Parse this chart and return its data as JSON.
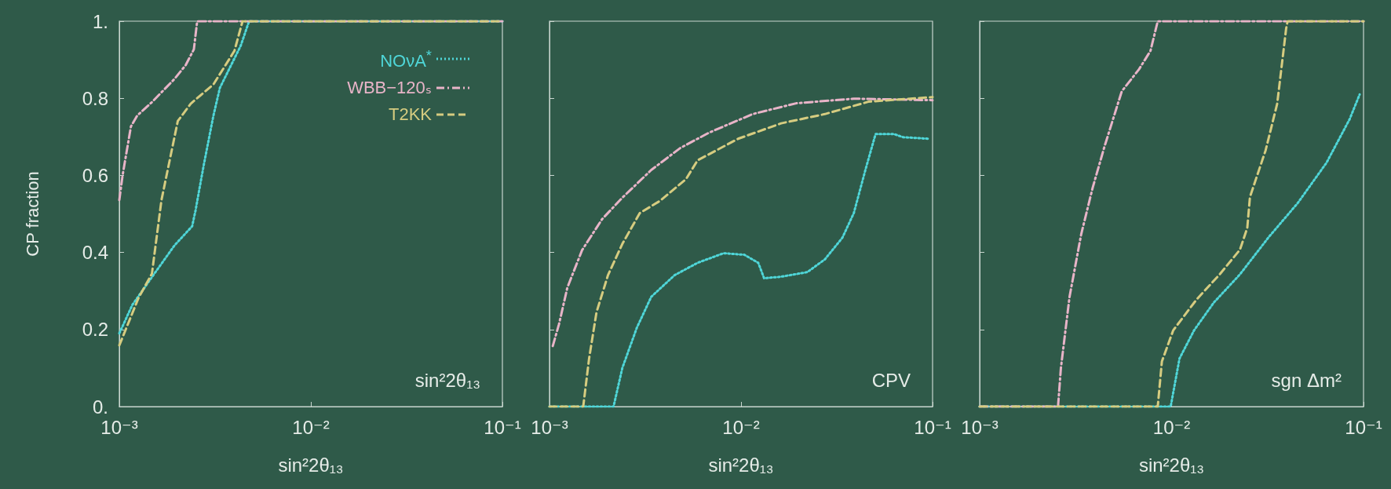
{
  "chart_data": [
    {
      "type": "line",
      "xlabel": "sin²2θ₁₃",
      "ylabel": "CP fraction",
      "log": "x",
      "xlim": [
        0.001,
        0.1
      ],
      "xticks": [
        {
          "value": 0.001,
          "label": "10⁻³"
        },
        {
          "value": 0.01,
          "label": "10⁻²"
        },
        {
          "value": 0.1,
          "label": "10⁻¹"
        }
      ],
      "ylim": [
        0,
        1
      ],
      "yticks": [
        {
          "value": 0,
          "label": "0."
        },
        0.2,
        0.4,
        0.6,
        0.8,
        {
          "value": 1,
          "label": "1."
        }
      ],
      "legend": "top right",
      "annotations": [
        "sin²2θ₁₃"
      ],
      "series": [
        {
          "name": "NOνA$^{*}$",
          "color": "#4fd6d8",
          "line_style": "dotted",
          "x": [
            0.001,
            0.00117,
            0.00148,
            0.00194,
            0.0024,
            0.0025,
            0.00276,
            0.0031,
            0.00335,
            0.0043,
            0.00476,
            0.1
          ],
          "values": [
            0.19,
            0.264,
            0.336,
            0.418,
            0.468,
            0.509,
            0.627,
            0.755,
            0.827,
            0.936,
            1,
            1
          ]
        },
        {
          "name": "WBB−120ₛ",
          "color": "#e8b4c8",
          "line_style": "dashdot",
          "x": [
            0.001,
            0.00104,
            0.00115,
            0.00124,
            0.00148,
            0.00194,
            0.00222,
            0.00245,
            0.00255,
            0.1
          ],
          "values": [
            0.536,
            0.6,
            0.727,
            0.755,
            0.79,
            0.85,
            0.886,
            0.927,
            1,
            1
          ]
        },
        {
          "name": "T2KK",
          "color": "#d6cc80",
          "line_style": "dashed",
          "x": [
            0.001,
            0.00126,
            0.00148,
            0.00166,
            0.00202,
            0.00236,
            0.0031,
            0.00399,
            0.0044,
            0.1
          ],
          "values": [
            0.159,
            0.282,
            0.345,
            0.536,
            0.741,
            0.786,
            0.836,
            0.923,
            1,
            1
          ]
        }
      ]
    },
    {
      "type": "line",
      "xlabel": "sin²2θ₁₃",
      "log": "x",
      "xlim": [
        0.001,
        0.1
      ],
      "xticks": [
        {
          "value": 0.001,
          "label": "10⁻³"
        },
        {
          "value": 0.01,
          "label": "10⁻²"
        },
        {
          "value": 0.1,
          "label": "10⁻¹"
        }
      ],
      "ylim": [
        0,
        1
      ],
      "yticks": [
        0,
        0.2,
        0.4,
        0.6,
        0.8,
        1
      ],
      "tick_labels": "x",
      "annotations": [
        "CPV"
      ],
      "series": [
        {
          "color": "#4fd6d8",
          "line_style": "dotted",
          "x": [
            0.001,
            0.00216,
            0.0024,
            0.00286,
            0.0034,
            0.0045,
            0.00593,
            0.00811,
            0.0104,
            0.0123,
            0.0132,
            0.0162,
            0.0222,
            0.0274,
            0.0338,
            0.0388,
            0.0446,
            0.0504,
            0.0631,
            0.0701,
            0.0955
          ],
          "values": [
            0,
            0,
            0.1,
            0.205,
            0.285,
            0.341,
            0.373,
            0.398,
            0.394,
            0.373,
            0.333,
            0.337,
            0.349,
            0.382,
            0.438,
            0.502,
            0.614,
            0.707,
            0.707,
            0.699,
            0.695
          ]
        },
        {
          "color": "#e8b4c8",
          "line_style": "dashdot",
          "x": [
            0.00104,
            0.00112,
            0.00124,
            0.00148,
            0.00188,
            0.0024,
            0.0034,
            0.00482,
            0.00682,
            0.0115,
            0.0194,
            0.0388,
            0.1
          ],
          "values": [
            0.157,
            0.213,
            0.309,
            0.406,
            0.486,
            0.542,
            0.614,
            0.671,
            0.711,
            0.759,
            0.787,
            0.799,
            0.795
          ]
        },
        {
          "color": "#d6cc80",
          "line_style": "dashed",
          "x": [
            0.001,
            0.0015,
            0.00161,
            0.00176,
            0.00202,
            0.0024,
            0.00296,
            0.00378,
            0.00516,
            0.00593,
            0.00966,
            0.0162,
            0.0274,
            0.0462,
            0.1
          ],
          "values": [
            0,
            0,
            0.125,
            0.245,
            0.341,
            0.422,
            0.502,
            0.534,
            0.59,
            0.639,
            0.695,
            0.735,
            0.759,
            0.791,
            0.803
          ]
        }
      ]
    },
    {
      "type": "line",
      "xlabel": "sin²2θ₁₃",
      "log": "x",
      "xlim": [
        0.001,
        0.1
      ],
      "xticks": [
        {
          "value": 0.001,
          "label": "10⁻³"
        },
        {
          "value": 0.01,
          "label": "10⁻²"
        },
        {
          "value": 0.1,
          "label": "10⁻¹"
        }
      ],
      "ylim": [
        0,
        1
      ],
      "yticks": [
        0,
        0.2,
        0.4,
        0.6,
        0.8,
        1
      ],
      "tick_labels": "x",
      "annotations": [
        "sgn Δm²"
      ],
      "series": [
        {
          "color": "#4fd6d8",
          "line_style": "dotted",
          "x": [
            0.001,
            0.00989,
            0.011,
            0.0131,
            0.0166,
            0.0227,
            0.0321,
            0.0454,
            0.0642,
            0.0847,
            0.0955
          ],
          "values": [
            0,
            0,
            0.125,
            0.198,
            0.27,
            0.343,
            0.44,
            0.528,
            0.633,
            0.746,
            0.81
          ]
        },
        {
          "color": "#e8b4c8",
          "line_style": "dashdot",
          "x": [
            0.001,
            0.00256,
            0.00265,
            0.00294,
            0.00338,
            0.00388,
            0.00446,
            0.0055,
            0.00676,
            0.00776,
            0.00847,
            0.1
          ],
          "values": [
            0,
            0,
            0.1,
            0.285,
            0.447,
            0.568,
            0.673,
            0.818,
            0.875,
            0.923,
            1,
            1
          ]
        },
        {
          "color": "#d6cc80",
          "line_style": "dashed",
          "x": [
            0.001,
            0.00847,
            0.0089,
            0.0102,
            0.0135,
            0.0178,
            0.0227,
            0.0248,
            0.0256,
            0.0309,
            0.0355,
            0.0395,
            0.0402,
            0.1
          ],
          "values": [
            0,
            0,
            0.117,
            0.198,
            0.278,
            0.343,
            0.407,
            0.464,
            0.544,
            0.665,
            0.786,
            0.98,
            1,
            1
          ]
        }
      ]
    }
  ]
}
